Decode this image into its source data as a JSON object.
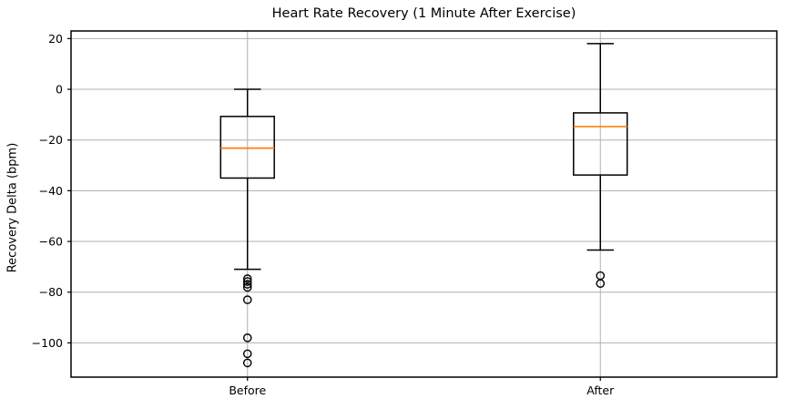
{
  "figure": {
    "background": "#ffffff"
  },
  "chart_data": {
    "type": "boxplot",
    "title": "Heart Rate Recovery (1 Minute After Exercise)",
    "xlabel": "",
    "ylabel": "Recovery Delta (bpm)",
    "categories": [
      "Before",
      "After"
    ],
    "yticks": [
      {
        "value": 20,
        "label": "20"
      },
      {
        "value": 0,
        "label": "0"
      },
      {
        "value": -20,
        "label": "−20"
      },
      {
        "value": -40,
        "label": "−40"
      },
      {
        "value": -60,
        "label": "−60"
      },
      {
        "value": -80,
        "label": "−80"
      },
      {
        "value": -100,
        "label": "−100"
      }
    ],
    "ylim": [
      -113.5,
      23
    ],
    "grid": true,
    "legend": false,
    "series": [
      {
        "name": "Before",
        "x_frac": 0.25,
        "whisker_high": 0,
        "q3": -10.7,
        "median": -23.2,
        "q1": -35,
        "whisker_low": -71,
        "outliers": [
          -74.7,
          -75.8,
          -76.9,
          -78.1,
          -83,
          -98,
          -104.3,
          -107.9
        ]
      },
      {
        "name": "After",
        "x_frac": 0.75,
        "whisker_high": 18,
        "q3": -9.3,
        "median": -14.7,
        "q1": -33.8,
        "whisker_low": -63.4,
        "outliers": [
          -73.5,
          -76.6
        ]
      }
    ],
    "layout": {
      "box_width_frac": 0.076,
      "cap_width_frac": 0.038
    },
    "colors": {
      "median": "#ff7f0e",
      "box": "#000000",
      "whisker": "#000000",
      "outlier": "#000000",
      "grid": "#b0b0b0",
      "spine": "#000000",
      "background": "#ffffff"
    }
  }
}
